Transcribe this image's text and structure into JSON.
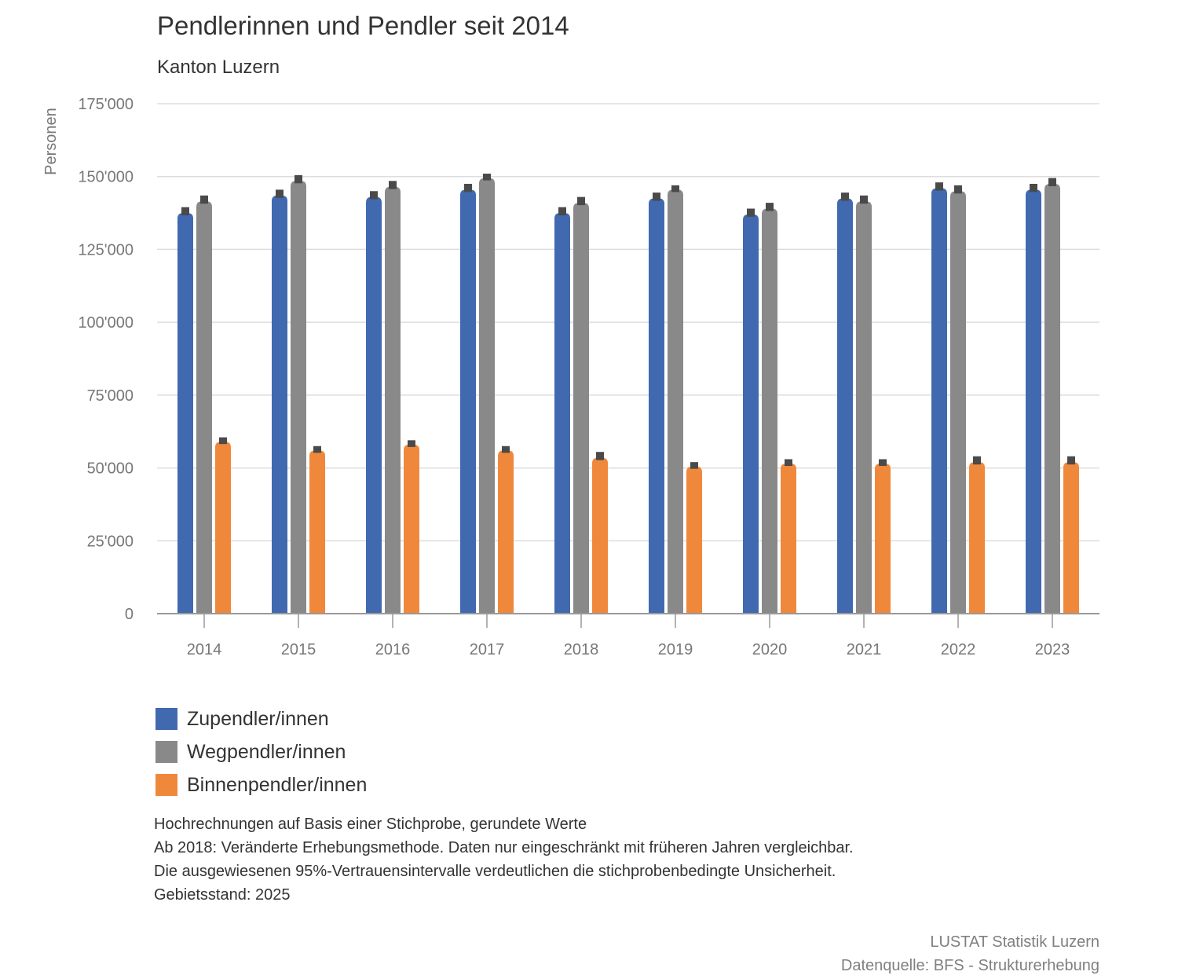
{
  "header": {
    "title": "Pendlerinnen und Pendler seit 2014",
    "subtitle": "Kanton Luzern"
  },
  "colors": {
    "zupendler": "#4169b0",
    "wegpendler": "#898989",
    "binnenpendler": "#f0883c",
    "error_bar": "#4a4a4a",
    "grid": "#dddddd",
    "axis": "#999999",
    "tick_text": "#777777"
  },
  "chart_data": {
    "type": "bar",
    "title": "Pendlerinnen und Pendler seit 2014",
    "subtitle": "Kanton Luzern",
    "xlabel": "",
    "ylabel": "Personen",
    "ylim": [
      0,
      175000
    ],
    "yticks": [
      0,
      25000,
      50000,
      75000,
      100000,
      125000,
      150000,
      175000
    ],
    "ytick_labels": [
      "0",
      "25'000",
      "50'000",
      "75'000",
      "100'000",
      "125'000",
      "150'000",
      "175'000"
    ],
    "grid": true,
    "categories": [
      "2014",
      "2015",
      "2016",
      "2017",
      "2018",
      "2019",
      "2020",
      "2021",
      "2022",
      "2023"
    ],
    "series": [
      {
        "name": "Zupendler/innen",
        "values": [
          137500,
          143500,
          143000,
          145500,
          137500,
          142500,
          137000,
          142500,
          146000,
          145500
        ],
        "ci_upper": [
          139500,
          145500,
          145000,
          147500,
          139500,
          144500,
          139000,
          144500,
          148000,
          147500
        ]
      },
      {
        "name": "Wegpendler/innen",
        "values": [
          141500,
          148500,
          146500,
          149500,
          141000,
          145500,
          139000,
          141500,
          145000,
          147500
        ],
        "ci_upper": [
          143500,
          150500,
          148500,
          151000,
          143000,
          147000,
          141000,
          143500,
          147000,
          149500
        ]
      },
      {
        "name": "Binnenpendler/innen",
        "values": [
          59000,
          56000,
          58000,
          56000,
          53500,
          50500,
          51500,
          51500,
          52000,
          52000
        ],
        "ci_upper": [
          60500,
          57500,
          59500,
          57500,
          55500,
          52000,
          53000,
          53000,
          54000,
          54000
        ]
      }
    ],
    "legend_position": "bottom-left"
  },
  "legend": {
    "items": [
      {
        "label": "Zupendler/innen"
      },
      {
        "label": "Wegpendler/innen"
      },
      {
        "label": "Binnenpendler/innen"
      }
    ]
  },
  "notes": {
    "lines": [
      "Hochrechnungen auf Basis einer Stichprobe, gerundete Werte",
      "Ab 2018: Veränderte Erhebungsmethode. Daten nur eingeschränkt mit früheren Jahren vergleichbar.",
      "Die ausgewiesenen 95%-Vertrauensintervalle verdeutlichen die stichprobenbedingte Unsicherheit.",
      "Gebietsstand: 2025"
    ]
  },
  "source": {
    "org": "LUSTAT Statistik Luzern",
    "data": "Datenquelle: BFS - Strukturerhebung"
  }
}
